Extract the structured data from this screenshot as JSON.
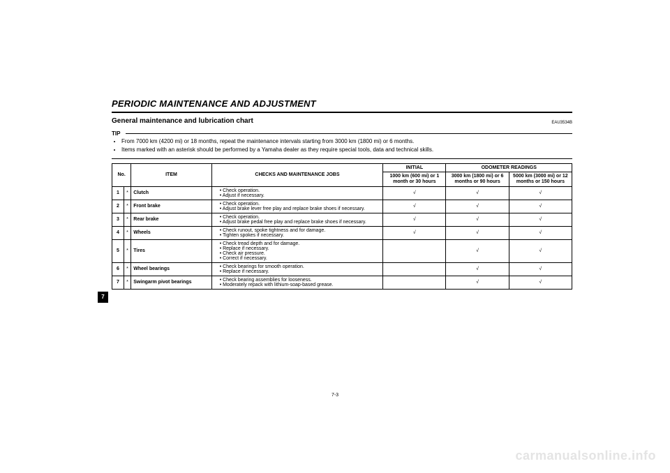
{
  "heading": "PERIODIC MAINTENANCE AND ADJUSTMENT",
  "code": "EAU3534B",
  "section_title": "General maintenance and lubrication chart",
  "tip_label": "TIP",
  "tips": [
    "From 7000 km (4200 mi) or 18 months, repeat the maintenance intervals starting from 3000 km (1800 mi) or 6 months.",
    "Items marked with an asterisk should be performed by a Yamaha dealer as they require special tools, data and technical skills."
  ],
  "table": {
    "head": {
      "no": "No.",
      "item": "ITEM",
      "jobs": "CHECKS AND MAINTENANCE JOBS",
      "initial": "INITIAL",
      "odo": "ODOMETER READINGS",
      "c1": "1000 km (600 mi) or 1 month or 30 hours",
      "c2": "3000 km (1800 mi) or 6 months or 90 hours",
      "c3": "5000 km (3000 mi) or 12 months or 150 hours"
    },
    "mark": "√",
    "rows": [
      {
        "no": "1",
        "ast": "*",
        "item": "Clutch",
        "jobs": [
          "Check operation.",
          "Adjust if necessary."
        ],
        "c1": true,
        "c2": true,
        "c3": true
      },
      {
        "no": "2",
        "ast": "*",
        "item": "Front brake",
        "jobs": [
          "Check operation.",
          "Adjust brake lever free play and replace brake shoes if necessary."
        ],
        "c1": true,
        "c2": true,
        "c3": true
      },
      {
        "no": "3",
        "ast": "*",
        "item": "Rear brake",
        "jobs": [
          "Check operation.",
          "Adjust brake pedal free play and replace brake shoes if necessary."
        ],
        "c1": true,
        "c2": true,
        "c3": true
      },
      {
        "no": "4",
        "ast": "*",
        "item": "Wheels",
        "jobs": [
          "Check runout, spoke tightness and for damage.",
          "Tighten spokes if necessary."
        ],
        "c1": true,
        "c2": true,
        "c3": true
      },
      {
        "no": "5",
        "ast": "*",
        "item": "Tires",
        "jobs": [
          "Check tread depth and for damage.",
          "Replace if necessary.",
          "Check air pressure.",
          "Correct if necessary."
        ],
        "c1": false,
        "c2": true,
        "c3": true
      },
      {
        "no": "6",
        "ast": "*",
        "item": "Wheel bearings",
        "jobs": [
          "Check bearings for smooth operation.",
          "Replace if necessary."
        ],
        "c1": false,
        "c2": true,
        "c3": true
      },
      {
        "no": "7",
        "ast": "*",
        "item": "Swingarm pivot bearings",
        "jobs": [
          "Check bearing assemblies for looseness.",
          "Moderately repack with lithium-soap-based grease."
        ],
        "c1": false,
        "c2": true,
        "c3": true
      }
    ]
  },
  "page_number": "7-3",
  "side_tab": "7",
  "watermark": "carmanualsonline.info"
}
